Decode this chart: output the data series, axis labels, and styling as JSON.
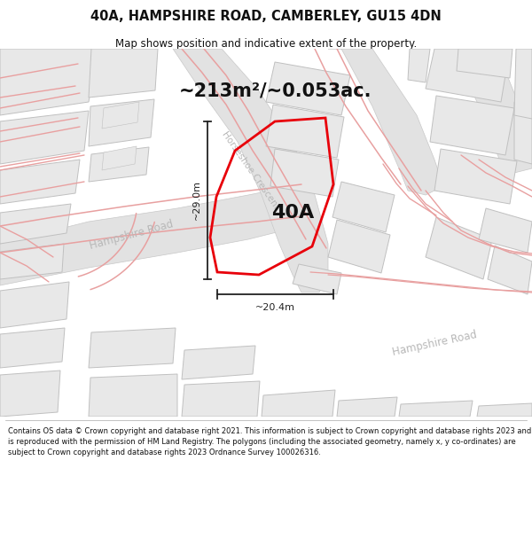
{
  "title_line1": "40A, HAMPSHIRE ROAD, CAMBERLEY, GU15 4DN",
  "title_line2": "Map shows position and indicative extent of the property.",
  "area_label": "~213m²/~0.053ac.",
  "plot_label": "40A",
  "dim_width": "~20.4m",
  "dim_height": "~29.0m",
  "road_label_left": "Hampshire Road",
  "road_label_right": "Hampshire Road",
  "crescent_label": "Horseshoe Crescent",
  "footer": "Contains OS data © Crown copyright and database right 2021. This information is subject to Crown copyright and database rights 2023 and is reproduced with the permission of HM Land Registry. The polygons (including the associated geometry, namely x, y co-ordinates) are subject to Crown copyright and database rights 2023 Ordnance Survey 100026316.",
  "bg_color": "#f8f8f8",
  "road_gray": "#e2e2e2",
  "road_gray_outline": "#c8c8c8",
  "building_color": "#e8e8e8",
  "building_outline": "#c0c0c0",
  "plot_color": "#e8000a",
  "pink_road": "#e8a0a0",
  "pink_light": "#f0c0c0",
  "label_gray": "#b8b8b8",
  "dim_color": "#222222",
  "text_color": "#111111"
}
